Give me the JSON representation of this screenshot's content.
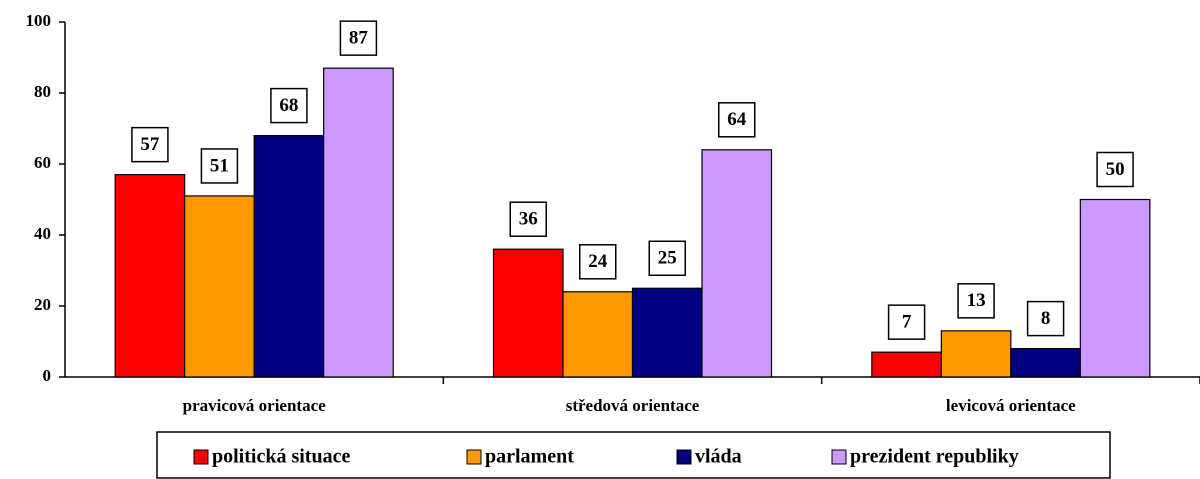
{
  "chart_data": {
    "type": "bar",
    "categories": [
      "pravicová orientace",
      "středová orientace",
      "levicová orientace"
    ],
    "series": [
      {
        "name": "politická situace",
        "color": "#ff0000",
        "values": [
          57,
          36,
          7
        ]
      },
      {
        "name": "parlament",
        "color": "#ff9900",
        "values": [
          51,
          24,
          13
        ]
      },
      {
        "name": "vláda",
        "color": "#000080",
        "values": [
          68,
          25,
          8
        ]
      },
      {
        "name": "prezident republiky",
        "color": "#cc99ff",
        "values": [
          87,
          64,
          50
        ]
      }
    ],
    "ylim": [
      0,
      100
    ],
    "yticks": [
      0,
      20,
      40,
      60,
      80,
      100
    ],
    "grid": false,
    "legend": "bottom"
  }
}
